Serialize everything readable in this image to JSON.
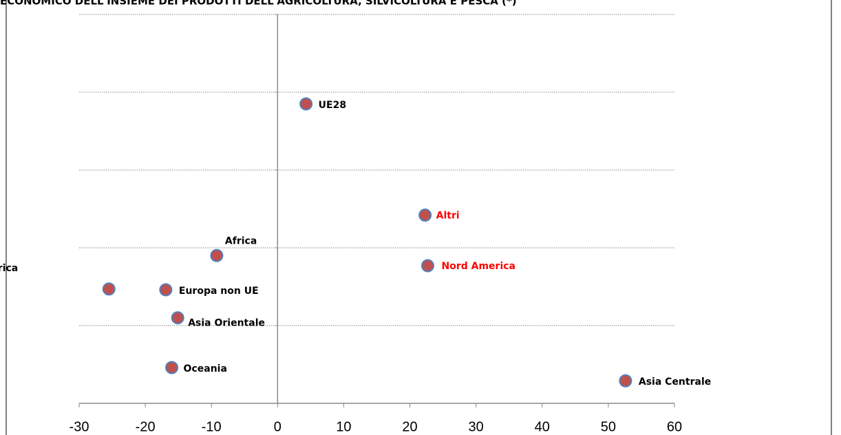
{
  "chart_data": {
    "type": "scatter",
    "title": "ECONOMICO DELL'INSIEME DEI PRODOTTI DELL'AGRICOLTURA, SILVICOLTURA E PESCA (*)",
    "labels": [
      "UE28",
      "Altri",
      "Nord America",
      "Africa",
      "Sud e Centro America",
      "Europa non UE",
      "Asia Orientale",
      "Oceania",
      "Asia Centrale"
    ],
    "x": [
      4.3,
      22.3,
      22.7,
      -9.2,
      -25.5,
      -16.9,
      -15.1,
      -16.0,
      52.6
    ],
    "values": [
      3.85,
      2.42,
      1.77,
      1.9,
      1.47,
      1.46,
      1.1,
      0.46,
      0.29
    ],
    "label_colors": [
      "#000000",
      "#ff0000",
      "#ff0000",
      "#000000",
      "#000000",
      "#000000",
      "#000000",
      "#000000",
      "#000000"
    ],
    "color": "#c0504d",
    "edge_color": "#4f81bd",
    "xlim": [
      -30,
      60
    ],
    "xticks": [
      -30,
      -20,
      -10,
      0,
      10,
      20,
      30,
      40,
      50,
      60
    ],
    "ylim": [
      0,
      5
    ],
    "yticks": [
      1,
      2,
      3,
      4,
      5
    ],
    "grid": true
  }
}
